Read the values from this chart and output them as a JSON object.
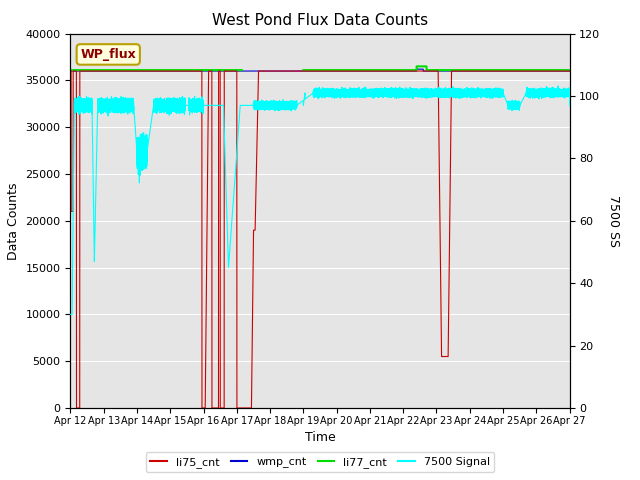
{
  "title": "West Pond Flux Data Counts",
  "xlabel": "Time",
  "ylabel_left": "Data Counts",
  "ylabel_right": "7500 SS",
  "annotation_text": "WP_flux",
  "xlim_start": 0,
  "xlim_end": 15,
  "ylim_left": [
    0,
    40000
  ],
  "ylim_right": [
    0,
    120
  ],
  "xtick_labels": [
    "Apr 12",
    "Apr 13",
    "Apr 14",
    "Apr 15",
    "Apr 16",
    "Apr 17",
    "Apr 18",
    "Apr 19",
    "Apr 20",
    "Apr 21",
    "Apr 22",
    "Apr 23",
    "Apr 24",
    "Apr 25",
    "Apr 26",
    "Apr 27"
  ],
  "background_color": "#e5e5e5",
  "li75_color": "#cc0000",
  "wmp_color": "#0000cc",
  "li77_color": "#00dd00",
  "signal_color": "cyan",
  "legend_entries": [
    "li75_cnt",
    "wmp_cnt",
    "li77_cnt",
    "7500 Signal"
  ]
}
